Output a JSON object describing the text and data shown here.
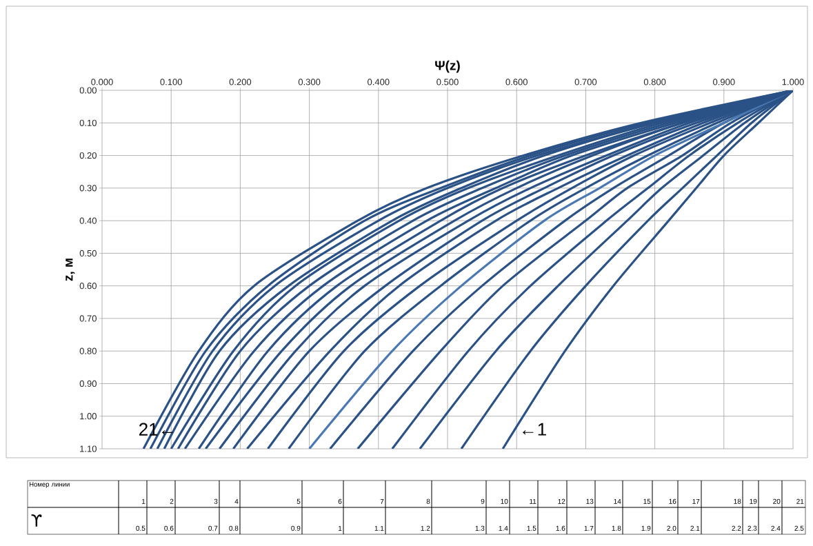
{
  "chart_data": {
    "type": "line",
    "xlabel": "Ψ(z)",
    "ylabel": "z, м",
    "xlim": [
      0,
      1
    ],
    "ylim": [
      1.1,
      0
    ],
    "xticks": [
      {
        "value": 0,
        "label": "0.000"
      },
      {
        "value": 0.1,
        "label": "0.100"
      },
      {
        "value": 0.2,
        "label": "0.200"
      },
      {
        "value": 0.3,
        "label": "0.300"
      },
      {
        "value": 0.4,
        "label": "0.400"
      },
      {
        "value": 0.5,
        "label": "0.500"
      },
      {
        "value": 0.6,
        "label": "0.600"
      },
      {
        "value": 0.7,
        "label": "0.700"
      },
      {
        "value": 0.8,
        "label": "0.800"
      },
      {
        "value": 0.9,
        "label": "0.900"
      },
      {
        "value": 1,
        "label": "1.000"
      }
    ],
    "yticks": [
      {
        "value": 0,
        "label": "0.00"
      },
      {
        "value": 0.1,
        "label": "0.10"
      },
      {
        "value": 0.2,
        "label": "0.20"
      },
      {
        "value": 0.3,
        "label": "0.30"
      },
      {
        "value": 0.4,
        "label": "0.40"
      },
      {
        "value": 0.5,
        "label": "0.50"
      },
      {
        "value": 0.6,
        "label": "0.60"
      },
      {
        "value": 0.7,
        "label": "0.70"
      },
      {
        "value": 0.8,
        "label": "0.80"
      },
      {
        "value": 0.9,
        "label": "0.90"
      },
      {
        "value": 1,
        "label": "1.00"
      },
      {
        "value": 1.1,
        "label": "1.10"
      }
    ],
    "grid": true,
    "series": [
      {
        "color": "#2b5287",
        "x": [
          1,
          0.95,
          0.9,
          0.86,
          0.82,
          0.74,
          0.67,
          0.58
        ],
        "values": [
          0,
          0.1,
          0.2,
          0.3,
          0.4,
          0.6,
          0.8,
          1.1
        ]
      },
      {
        "color": "#2b5287",
        "x": [
          1,
          0.94,
          0.89,
          0.84,
          0.79,
          0.7,
          0.62,
          0.52
        ],
        "values": [
          0,
          0.1,
          0.2,
          0.3,
          0.4,
          0.6,
          0.8,
          1.1
        ]
      },
      {
        "color": "#2b5287",
        "x": [
          1,
          0.93,
          0.87,
          0.81,
          0.76,
          0.66,
          0.57,
          0.46
        ],
        "values": [
          0,
          0.1,
          0.2,
          0.3,
          0.4,
          0.6,
          0.8,
          1.1
        ]
      },
      {
        "color": "#2b5287",
        "x": [
          1,
          0.92,
          0.85,
          0.79,
          0.73,
          0.62,
          0.53,
          0.42
        ],
        "values": [
          0,
          0.1,
          0.2,
          0.3,
          0.4,
          0.6,
          0.8,
          1.1
        ]
      },
      {
        "color": "#2b5287",
        "x": [
          1,
          0.91,
          0.84,
          0.76,
          0.7,
          0.58,
          0.49,
          0.37
        ],
        "values": [
          0,
          0.1,
          0.2,
          0.3,
          0.4,
          0.6,
          0.8,
          1.1
        ]
      },
      {
        "color": "#2b5287",
        "x": [
          1,
          0.9,
          0.82,
          0.74,
          0.67,
          0.55,
          0.45,
          0.33
        ],
        "values": [
          0,
          0.1,
          0.2,
          0.3,
          0.4,
          0.6,
          0.8,
          1.1
        ]
      },
      {
        "color": "#4a78b2",
        "x": [
          1,
          0.9,
          0.8,
          0.72,
          0.64,
          0.52,
          0.42,
          0.3
        ],
        "values": [
          0,
          0.1,
          0.2,
          0.3,
          0.4,
          0.6,
          0.8,
          1.1
        ]
      },
      {
        "color": "#2b5287",
        "x": [
          1,
          0.89,
          0.79,
          0.7,
          0.62,
          0.49,
          0.38,
          0.27
        ],
        "values": [
          0,
          0.1,
          0.2,
          0.3,
          0.4,
          0.6,
          0.8,
          1.1
        ]
      },
      {
        "color": "#2b5287",
        "x": [
          1,
          0.88,
          0.77,
          0.68,
          0.6,
          0.46,
          0.35,
          0.24
        ],
        "values": [
          0,
          0.1,
          0.2,
          0.3,
          0.4,
          0.6,
          0.8,
          1.1
        ]
      },
      {
        "color": "#2b5287",
        "x": [
          1,
          0.87,
          0.76,
          0.66,
          0.57,
          0.43,
          0.33,
          0.21
        ],
        "values": [
          0,
          0.1,
          0.2,
          0.3,
          0.4,
          0.6,
          0.8,
          1.1
        ]
      },
      {
        "color": "#2b5287",
        "x": [
          1,
          0.86,
          0.74,
          0.64,
          0.55,
          0.41,
          0.3,
          0.19
        ],
        "values": [
          0,
          0.1,
          0.2,
          0.3,
          0.4,
          0.6,
          0.8,
          1.1
        ]
      },
      {
        "color": "#2b5287",
        "x": [
          1,
          0.85,
          0.73,
          0.62,
          0.53,
          0.38,
          0.28,
          0.17
        ],
        "values": [
          0,
          0.1,
          0.2,
          0.3,
          0.4,
          0.6,
          0.8,
          1.1
        ]
      },
      {
        "color": "#2b5287",
        "x": [
          1,
          0.84,
          0.71,
          0.6,
          0.51,
          0.36,
          0.26,
          0.15
        ],
        "values": [
          0,
          0.1,
          0.2,
          0.3,
          0.4,
          0.6,
          0.8,
          1.1
        ]
      },
      {
        "color": "#2b5287",
        "x": [
          1,
          0.84,
          0.7,
          0.58,
          0.49,
          0.34,
          0.24,
          0.14
        ],
        "values": [
          0,
          0.1,
          0.2,
          0.3,
          0.4,
          0.6,
          0.8,
          1.1
        ]
      },
      {
        "color": "#2b5287",
        "x": [
          1,
          0.83,
          0.68,
          0.57,
          0.47,
          0.32,
          0.22,
          0.12
        ],
        "values": [
          0,
          0.1,
          0.2,
          0.3,
          0.4,
          0.6,
          0.8,
          1.1
        ]
      },
      {
        "color": "#2b5287",
        "x": [
          1,
          0.82,
          0.67,
          0.55,
          0.45,
          0.3,
          0.2,
          0.11
        ],
        "values": [
          0,
          0.1,
          0.2,
          0.3,
          0.4,
          0.6,
          0.8,
          1.1
        ]
      },
      {
        "color": "#2b5287",
        "x": [
          1,
          0.81,
          0.66,
          0.53,
          0.43,
          0.28,
          0.19,
          0.1
        ],
        "values": [
          0,
          0.1,
          0.2,
          0.3,
          0.4,
          0.6,
          0.8,
          1.1
        ]
      },
      {
        "color": "#2b5287",
        "x": [
          1,
          0.8,
          0.64,
          0.52,
          0.42,
          0.27,
          0.17,
          0.09
        ],
        "values": [
          0,
          0.1,
          0.2,
          0.3,
          0.4,
          0.6,
          0.8,
          1.1
        ]
      },
      {
        "color": "#2b5287",
        "x": [
          1,
          0.8,
          0.63,
          0.5,
          0.4,
          0.25,
          0.16,
          0.08
        ],
        "values": [
          0,
          0.1,
          0.2,
          0.3,
          0.4,
          0.6,
          0.8,
          1.1
        ]
      },
      {
        "color": "#2b5287",
        "x": [
          1,
          0.79,
          0.62,
          0.49,
          0.38,
          0.24,
          0.15,
          0.07
        ],
        "values": [
          0,
          0.1,
          0.2,
          0.3,
          0.4,
          0.6,
          0.8,
          1.1
        ]
      },
      {
        "color": "#2b5287",
        "x": [
          1,
          0.78,
          0.61,
          0.47,
          0.37,
          0.22,
          0.14,
          0.06
        ],
        "values": [
          0,
          0.1,
          0.2,
          0.3,
          0.4,
          0.6,
          0.8,
          1.1
        ]
      }
    ],
    "annotations": [
      {
        "text": "21←",
        "x": 0.08,
        "y": 1.04
      },
      {
        "text": "←1",
        "x": 0.6,
        "y": 1.04
      },
      "Номер линии",
      "1",
      "2",
      "3",
      "4",
      "5",
      "6",
      "7",
      "8",
      "9",
      "10",
      "11",
      "12",
      "13",
      "14",
      "15",
      "16",
      "17",
      "18",
      "19",
      "20",
      "21",
      "ϒ",
      "0.5",
      "0.6",
      "0.7",
      "0.8",
      "0.9",
      "1",
      "1.1",
      "1.2",
      "1.3",
      "1.4",
      "1.5",
      "1.6",
      "1.7",
      "1.8",
      "1.9",
      "2.0",
      "2.1",
      "2.2",
      "2.3",
      "2.4",
      "2.5"
    ]
  }
}
